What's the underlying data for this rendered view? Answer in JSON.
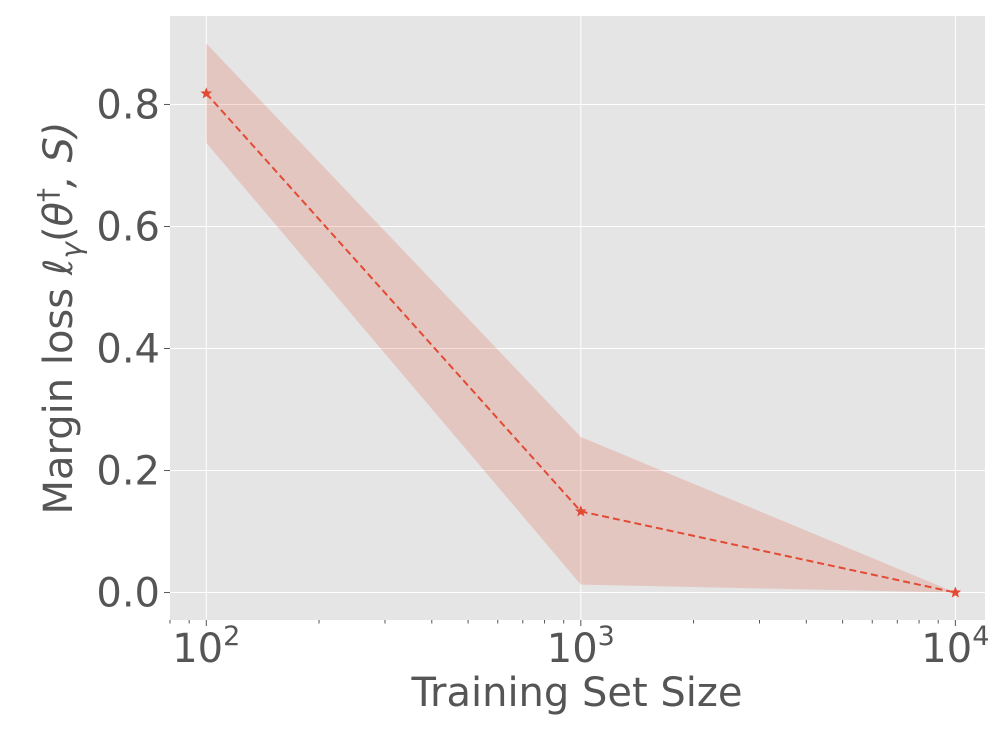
{
  "chart_data": {
    "type": "line",
    "title": "",
    "xlabel": "Training Set Size",
    "ylabel": {
      "prefix": "Margin loss ",
      "ell": "ℓ",
      "sub": "γ",
      "open": "(",
      "theta": "θ",
      "dagger": "†",
      "rest": ", S)"
    },
    "x_scale": "log",
    "xlim": [
      80,
      12000
    ],
    "ylim": [
      -0.045,
      0.945
    ],
    "x_ticks": [
      {
        "value": 100,
        "base": "10",
        "exp": "2"
      },
      {
        "value": 1000,
        "base": "10",
        "exp": "3"
      },
      {
        "value": 10000,
        "base": "10",
        "exp": "4"
      }
    ],
    "y_ticks": [
      {
        "value": 0.0,
        "label": "0.0"
      },
      {
        "value": 0.2,
        "label": "0.2"
      },
      {
        "value": 0.4,
        "label": "0.4"
      },
      {
        "value": 0.6,
        "label": "0.6"
      },
      {
        "value": 0.8,
        "label": "0.8"
      }
    ],
    "grid": true,
    "series": [
      {
        "x": [
          100,
          1000,
          10000
        ],
        "y": [
          0.818,
          0.133,
          0.0
        ],
        "lower": [
          0.737,
          0.013,
          0.0
        ],
        "upper": [
          0.9,
          0.255,
          0.0
        ],
        "color": "#E24A33",
        "band_color": "#E24A33",
        "line_style": "dashed",
        "marker": "star"
      }
    ],
    "background_color": "#E5E5E5",
    "grid_color": "#FFFFFF"
  }
}
